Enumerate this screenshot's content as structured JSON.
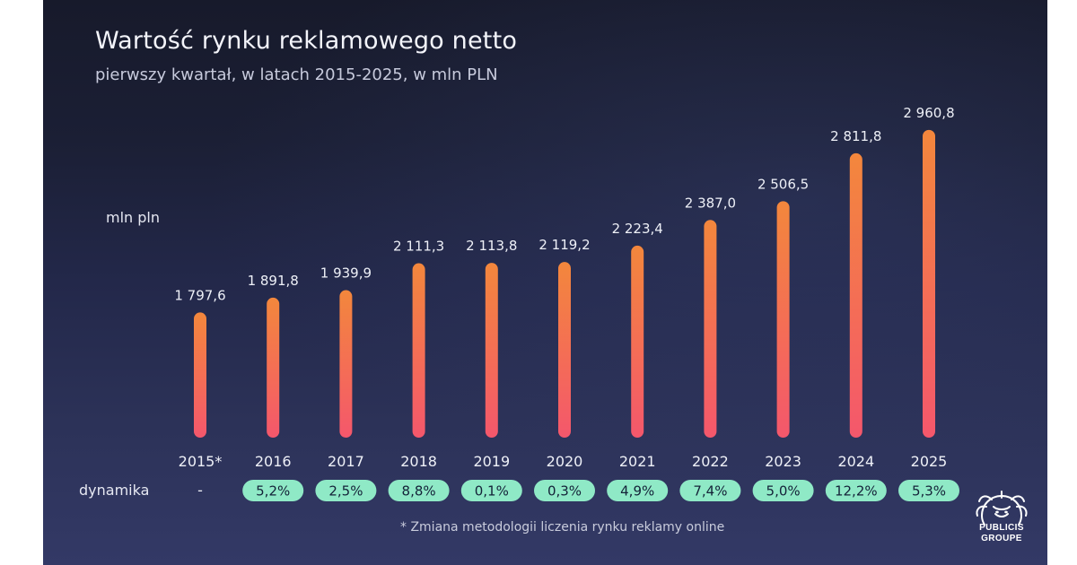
{
  "chart_data": {
    "type": "bar",
    "title": "Wartość rynku reklamowego netto",
    "subtitle": "pierwszy kwartał, w latach 2015-2025, w mln PLN",
    "ylabel": "mln pln",
    "ylim": [
      1000,
      3000
    ],
    "grid": false,
    "categories": [
      "2015*",
      "2016",
      "2017",
      "2018",
      "2019",
      "2020",
      "2021",
      "2022",
      "2023",
      "2024",
      "2025"
    ],
    "values": [
      1797.6,
      1891.8,
      1939.9,
      2111.3,
      2113.8,
      2119.2,
      2223.4,
      2387.0,
      2506.5,
      2811.8,
      2960.8
    ],
    "value_labels": [
      "1 797,6",
      "1 891,8",
      "1 939,9",
      "2 111,3",
      "2 113,8",
      "2 119,2",
      "2 223,4",
      "2 387,0",
      "2 506,5",
      "2 811,8",
      "2 960,8"
    ],
    "dynamics_label": "dynamika",
    "dynamics": [
      "-",
      "5,2%",
      "2,5%",
      "8,8%",
      "0,1%",
      "0,3%",
      "4,9%",
      "7,4%",
      "5,0%",
      "12,2%",
      "5,3%"
    ],
    "footnote": "* Zmiana metodologii liczenia rynku reklamy online",
    "colors": {
      "bar_top": "#f3873c",
      "bar_bottom": "#f4576c",
      "pill": "#8fe9c6",
      "pill_text": "#142238"
    }
  },
  "logo": {
    "icon": "publicis-lion-icon",
    "line1": "PUBLICIS",
    "line2": "GROUPE"
  }
}
